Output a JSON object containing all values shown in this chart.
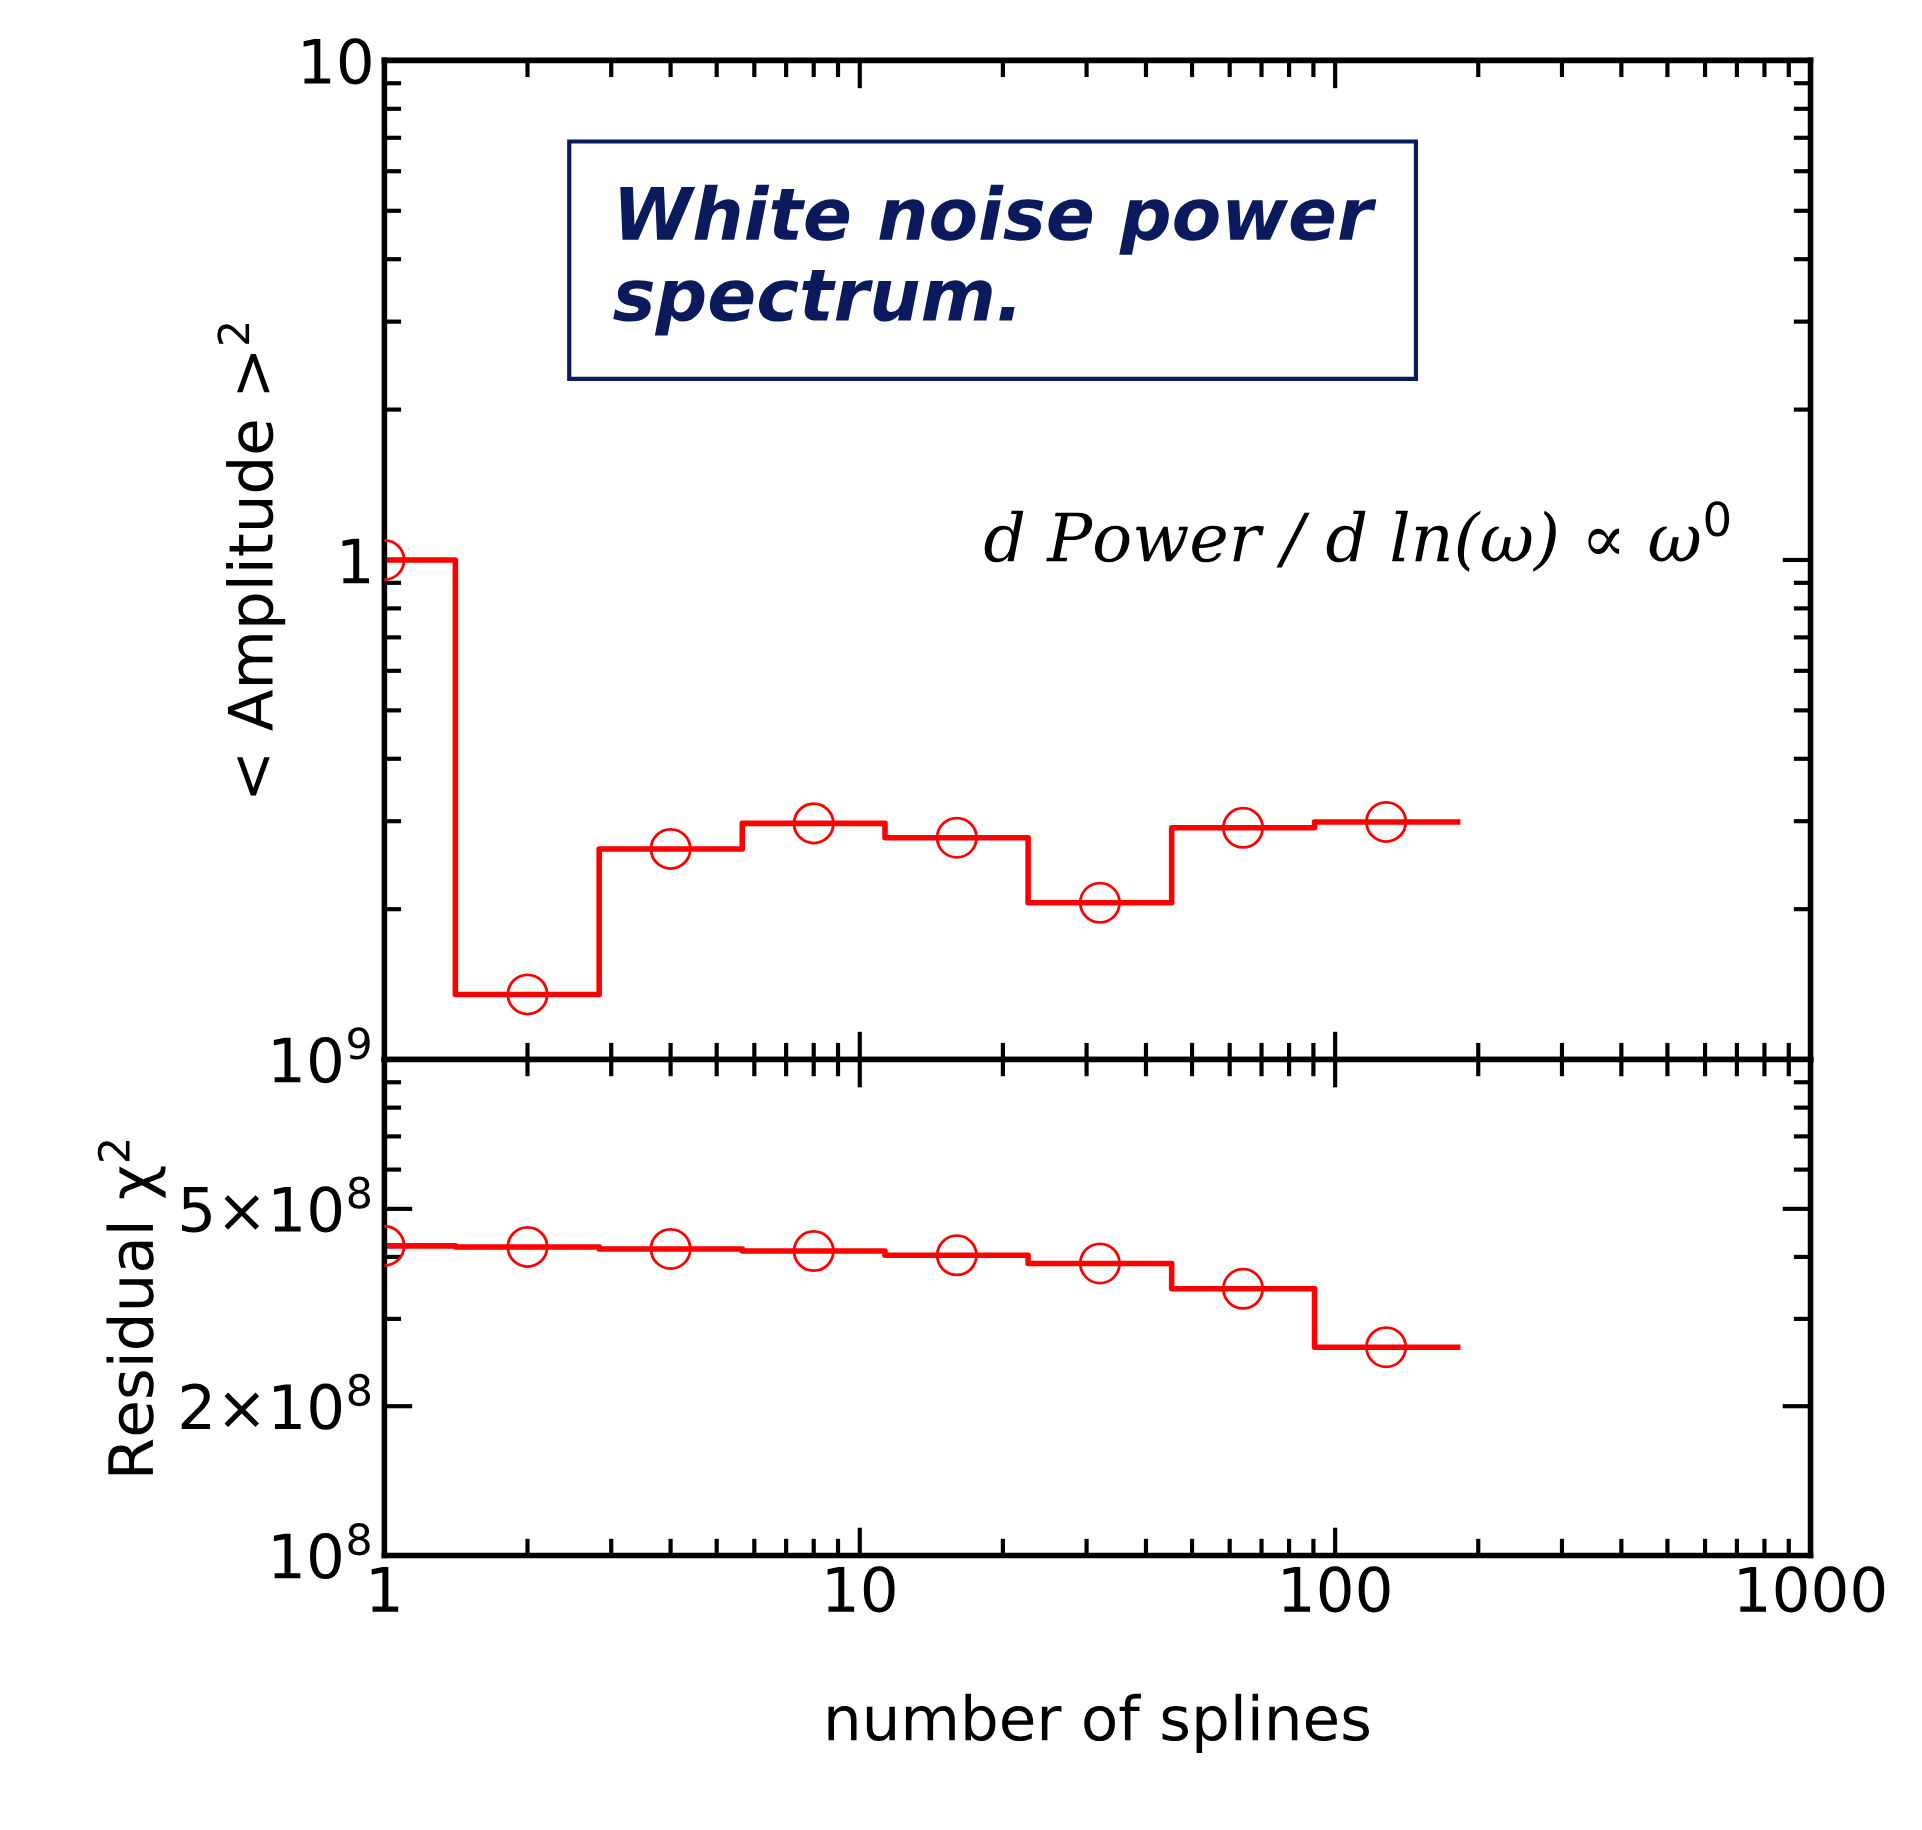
{
  "chart_data": [
    {
      "type": "scatter",
      "ylabel": "< Amplitude >$^{2}$",
      "log": "xy",
      "xlim": [
        1,
        1000
      ],
      "ylim": [
        0.1,
        10
      ],
      "xticks": [
        1,
        10,
        100,
        1000
      ],
      "yticks": [
        {
          "value": 0.1,
          "label": null
        },
        1,
        10
      ],
      "tick_labels": "y",
      "grid": false,
      "legend": false,
      "x": [
        1,
        2,
        4,
        8,
        16,
        32,
        64,
        128
      ],
      "series": [
        {
          "type": "step",
          "color": "#ff0000",
          "x": [
            1,
            1.41,
            2.83,
            5.66,
            11.3,
            22.6,
            45.3,
            90.5,
            181
          ],
          "values": [
            1.0,
            0.135,
            0.264,
            0.297,
            0.278,
            0.206,
            0.291,
            0.299,
            0.299
          ]
        },
        {
          "color": "#ff0000",
          "marker": "circle",
          "values": [
            1.0,
            0.135,
            0.264,
            0.297,
            0.278,
            0.206,
            0.291,
            0.299
          ]
        }
      ],
      "annotations": [
        "White noise power\nspectrum.",
        "d Power / d ln(ω) ∝ ω$^{0}$"
      ]
    },
    {
      "type": "scatter",
      "ylabel": "Residual χ$^{2}$",
      "xlabel": "number of splines",
      "log": "xy",
      "xlim": [
        1,
        1000
      ],
      "ylim": [
        100000000,
        1000000000
      ],
      "xticks": [
        1,
        10,
        100,
        1000
      ],
      "yticks": [
        {
          "value": 100000000,
          "label": "10$^{8}$"
        },
        {
          "value": 200000000,
          "label": "2×10$^{8}$"
        },
        {
          "value": 500000000,
          "label": "5×10$^{8}$"
        },
        {
          "value": 1000000000,
          "label": "10$^{9}$"
        }
      ],
      "grid": false,
      "legend": false,
      "x": [
        1,
        2,
        4,
        8,
        16,
        32,
        64,
        128
      ],
      "series": [
        {
          "type": "step",
          "color": "#ff0000",
          "x": [
            1,
            1.41,
            2.83,
            5.66,
            11.3,
            22.6,
            45.3,
            90.5,
            181
          ],
          "values": [
            421000000,
            419000000,
            415000000,
            411000000,
            403000000,
            388000000,
            345000000,
            263000000,
            263000000
          ]
        },
        {
          "color": "#ff0000",
          "marker": "circle",
          "values": [
            421000000,
            419000000,
            415000000,
            411000000,
            403000000,
            388000000,
            345000000,
            263000000
          ]
        }
      ]
    }
  ]
}
